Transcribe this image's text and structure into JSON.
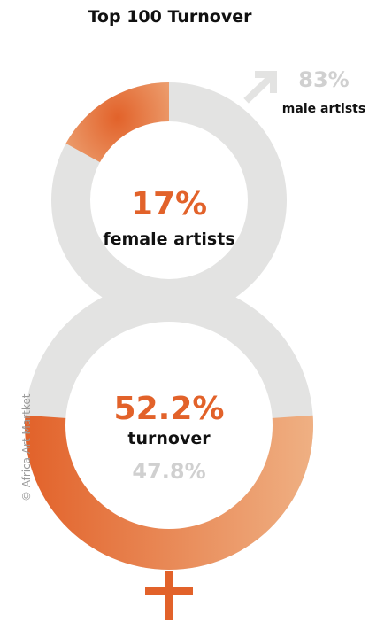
{
  "chart_data": {
    "type": "donut",
    "title": "Top 100 Turnover",
    "colors": {
      "female": "#e2622a",
      "female_light": "#efb083",
      "male": "#e3e3e2",
      "text_dark": "#111111",
      "text_grey": "#d0d0d0"
    },
    "artists": {
      "female_value": "17%",
      "female_label": "female artists",
      "male_value": "83%",
      "male_label": "male artists",
      "female_share": 17,
      "male_share": 83,
      "icon": "male-symbol-icon"
    },
    "turnover": {
      "female_value": "52.2%",
      "label": "turnover",
      "male_value": "47.8%",
      "female_share": 52.2,
      "male_share": 47.8,
      "icon": "female-symbol-icon"
    },
    "credit": "© Africa Art Martket"
  }
}
